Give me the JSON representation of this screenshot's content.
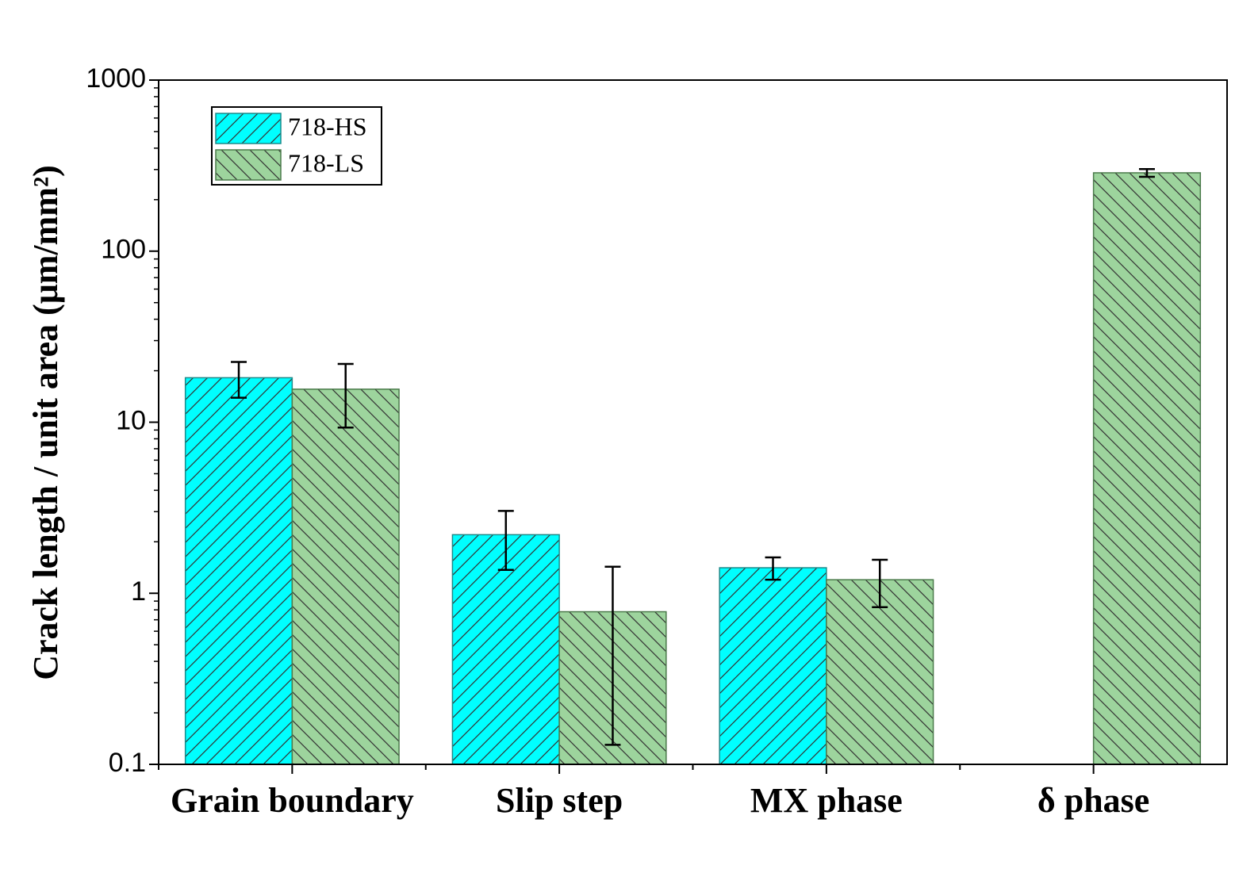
{
  "chart_data": {
    "type": "bar",
    "ylabel": "Crack length / unit area (μm/mm²)",
    "categories": [
      "Grain boundary",
      "Slip step",
      "MX phase",
      "δ phase"
    ],
    "series": [
      {
        "name": "718-HS",
        "color": "#00ffff",
        "hatch": "/",
        "values": [
          18.2,
          2.2,
          1.41,
          null
        ],
        "errors": [
          4.3,
          0.83,
          0.21,
          null
        ]
      },
      {
        "name": "718-LS",
        "color": "#9dd49d",
        "hatch": "\\",
        "values": [
          15.6,
          0.78,
          1.2,
          287
        ],
        "errors": [
          6.3,
          0.65,
          0.37,
          15
        ]
      }
    ],
    "ylim": [
      0.1,
      1000
    ],
    "yticks": [
      0.1,
      1,
      10,
      100,
      1000
    ],
    "log_y": true,
    "legend": "upper left"
  }
}
